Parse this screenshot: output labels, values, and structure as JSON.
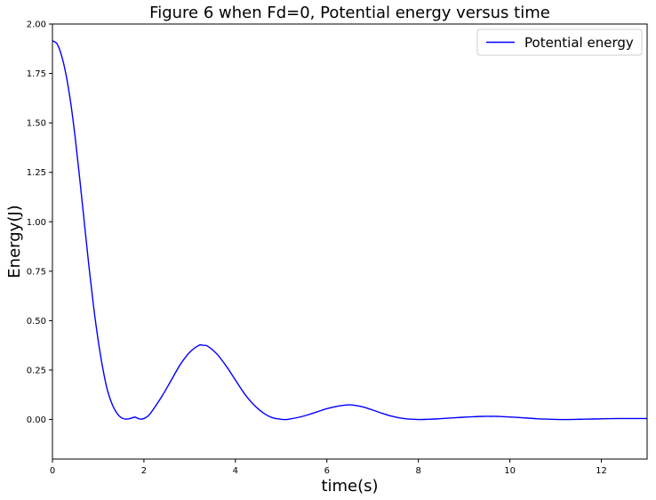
{
  "chart_data": {
    "type": "line",
    "title": "Figure 6 when Fd=0, Potential energy versus time",
    "xlabel": "time(s)",
    "ylabel": "Energy(J)",
    "xlim": [
      0,
      13
    ],
    "ylim": [
      -0.2,
      2.0
    ],
    "xticks": [
      0,
      2,
      4,
      6,
      8,
      10,
      12
    ],
    "xtick_labels": [
      "0",
      "2",
      "4",
      "6",
      "8",
      "10",
      "12"
    ],
    "yticks": [
      0.0,
      0.25,
      0.5,
      0.75,
      1.0,
      1.25,
      1.5,
      1.75,
      2.0
    ],
    "ytick_labels": [
      "0.00",
      "0.25",
      "0.50",
      "0.75",
      "1.00",
      "1.25",
      "1.50",
      "1.75",
      "2.00"
    ],
    "grid": false,
    "legend_position": "top-right",
    "series": [
      {
        "name": "Potential energy",
        "color": "#0000ff",
        "x": [
          0,
          0.1,
          0.2,
          0.3,
          0.4,
          0.5,
          0.6,
          0.7,
          0.8,
          0.9,
          1.0,
          1.1,
          1.2,
          1.3,
          1.4,
          1.5,
          1.6,
          1.7,
          1.8,
          1.9,
          2.0,
          2.1,
          2.2,
          2.4,
          2.6,
          2.8,
          3.0,
          3.2,
          3.3,
          3.4,
          3.6,
          3.8,
          4.0,
          4.2,
          4.4,
          4.6,
          4.8,
          5.0,
          5.1,
          5.2,
          5.4,
          5.6,
          5.8,
          6.0,
          6.2,
          6.4,
          6.5,
          6.6,
          6.8,
          7.0,
          7.2,
          7.4,
          7.6,
          7.8,
          8.0,
          8.2,
          8.4,
          8.6,
          8.8,
          9.0,
          9.2,
          9.4,
          9.6,
          9.7,
          9.8,
          10.0,
          10.2,
          10.4,
          10.6,
          10.8,
          11.0,
          11.2,
          11.4,
          11.6,
          11.8,
          12.0,
          12.2,
          12.4,
          12.6,
          12.8,
          13.0
        ],
        "y": [
          1.915,
          1.9,
          1.84,
          1.74,
          1.6,
          1.42,
          1.21,
          0.99,
          0.77,
          0.57,
          0.4,
          0.26,
          0.15,
          0.08,
          0.035,
          0.01,
          0.002,
          0.005,
          0.012,
          0.003,
          0.005,
          0.02,
          0.05,
          0.12,
          0.2,
          0.28,
          0.34,
          0.375,
          0.375,
          0.37,
          0.33,
          0.27,
          0.2,
          0.13,
          0.075,
          0.035,
          0.01,
          0.001,
          0.0,
          0.003,
          0.012,
          0.025,
          0.04,
          0.055,
          0.066,
          0.073,
          0.074,
          0.072,
          0.063,
          0.048,
          0.032,
          0.018,
          0.008,
          0.002,
          0.0,
          0.001,
          0.003,
          0.006,
          0.009,
          0.012,
          0.014,
          0.016,
          0.016,
          0.016,
          0.015,
          0.013,
          0.01,
          0.007,
          0.004,
          0.002,
          0.0005,
          0.0,
          0.0005,
          0.0015,
          0.0025,
          0.0035,
          0.0045,
          0.005,
          0.005,
          0.005,
          0.005
        ]
      }
    ]
  }
}
